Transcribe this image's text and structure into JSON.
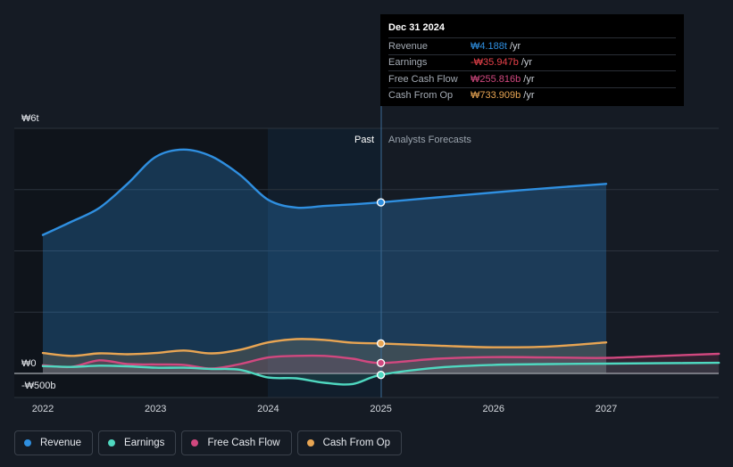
{
  "tooltip": {
    "date": "Dec 31 2024",
    "rows": [
      {
        "label": "Revenue",
        "value": "₩4.188t",
        "unit": "/yr",
        "color": "#2f8fe0"
      },
      {
        "label": "Earnings",
        "value": "-₩35.947b",
        "unit": "/yr",
        "color": "#e8414a"
      },
      {
        "label": "Free Cash Flow",
        "value": "₩255.816b",
        "unit": "/yr",
        "color": "#d1487f"
      },
      {
        "label": "Cash From Op",
        "value": "₩733.909b",
        "unit": "/yr",
        "color": "#e8a553"
      }
    ]
  },
  "legend": [
    {
      "label": "Revenue",
      "color": "#2f8fe0"
    },
    {
      "label": "Earnings",
      "color": "#4fd8c0"
    },
    {
      "label": "Free Cash Flow",
      "color": "#d1487f"
    },
    {
      "label": "Cash From Op",
      "color": "#e8a553"
    }
  ],
  "chart_data": {
    "type": "area",
    "x_ticks": [
      "2022",
      "2023",
      "2024",
      "2025",
      "2026",
      "2027"
    ],
    "y_tick_labels": [
      {
        "value": 6000,
        "label": "₩6t"
      },
      {
        "value": 0,
        "label": "₩0"
      },
      {
        "value": -500,
        "label": "-₩500b"
      }
    ],
    "ylim": [
      -500,
      6000
    ],
    "region_labels": {
      "past": "Past",
      "forecast": "Analysts Forecasts"
    },
    "forecast_start": 2025.0,
    "highlight_x": 2025.0,
    "grid": true,
    "legend_position": "bottom-left",
    "series": [
      {
        "name": "Revenue",
        "color": "#2f8fe0",
        "points": [
          [
            2022.0,
            3390
          ],
          [
            2022.25,
            3710
          ],
          [
            2022.5,
            4050
          ],
          [
            2022.75,
            4640
          ],
          [
            2023.0,
            5300
          ],
          [
            2023.25,
            5480
          ],
          [
            2023.5,
            5310
          ],
          [
            2023.75,
            4860
          ],
          [
            2024.0,
            4250
          ],
          [
            2024.25,
            4060
          ],
          [
            2024.5,
            4100
          ],
          [
            2024.75,
            4140
          ],
          [
            2025.0,
            4188
          ],
          [
            2025.5,
            4310
          ],
          [
            2026.0,
            4430
          ],
          [
            2026.5,
            4540
          ],
          [
            2027.0,
            4640
          ]
        ]
      },
      {
        "name": "Earnings",
        "color": "#4fd8c0",
        "points": [
          [
            2022.0,
            180
          ],
          [
            2022.25,
            160
          ],
          [
            2022.5,
            190
          ],
          [
            2022.75,
            175
          ],
          [
            2023.0,
            140
          ],
          [
            2023.25,
            140
          ],
          [
            2023.5,
            110
          ],
          [
            2023.75,
            90
          ],
          [
            2024.0,
            -100
          ],
          [
            2024.25,
            -120
          ],
          [
            2024.5,
            -230
          ],
          [
            2024.75,
            -260
          ],
          [
            2025.0,
            -36
          ],
          [
            2025.5,
            140
          ],
          [
            2026.0,
            210
          ],
          [
            2026.5,
            230
          ],
          [
            2027.0,
            240
          ],
          [
            2027.5,
            250
          ],
          [
            2028.0,
            260
          ]
        ]
      },
      {
        "name": "Free Cash Flow",
        "color": "#d1487f",
        "points": [
          [
            2022.0,
            200
          ],
          [
            2022.25,
            160
          ],
          [
            2022.5,
            320
          ],
          [
            2022.75,
            230
          ],
          [
            2023.0,
            220
          ],
          [
            2023.25,
            210
          ],
          [
            2023.5,
            120
          ],
          [
            2023.75,
            230
          ],
          [
            2024.0,
            390
          ],
          [
            2024.25,
            430
          ],
          [
            2024.5,
            430
          ],
          [
            2024.75,
            360
          ],
          [
            2025.0,
            256
          ],
          [
            2025.5,
            360
          ],
          [
            2026.0,
            400
          ],
          [
            2026.5,
            390
          ],
          [
            2027.0,
            380
          ],
          [
            2027.5,
            430
          ],
          [
            2028.0,
            480
          ]
        ]
      },
      {
        "name": "Cash From Op",
        "color": "#e8a553",
        "points": [
          [
            2022.0,
            500
          ],
          [
            2022.25,
            430
          ],
          [
            2022.5,
            490
          ],
          [
            2022.75,
            470
          ],
          [
            2023.0,
            500
          ],
          [
            2023.25,
            560
          ],
          [
            2023.5,
            490
          ],
          [
            2023.75,
            580
          ],
          [
            2024.0,
            760
          ],
          [
            2024.25,
            840
          ],
          [
            2024.5,
            820
          ],
          [
            2024.75,
            750
          ],
          [
            2025.0,
            734
          ],
          [
            2025.5,
            680
          ],
          [
            2026.0,
            640
          ],
          [
            2026.5,
            660
          ],
          [
            2027.0,
            760
          ]
        ]
      }
    ]
  }
}
